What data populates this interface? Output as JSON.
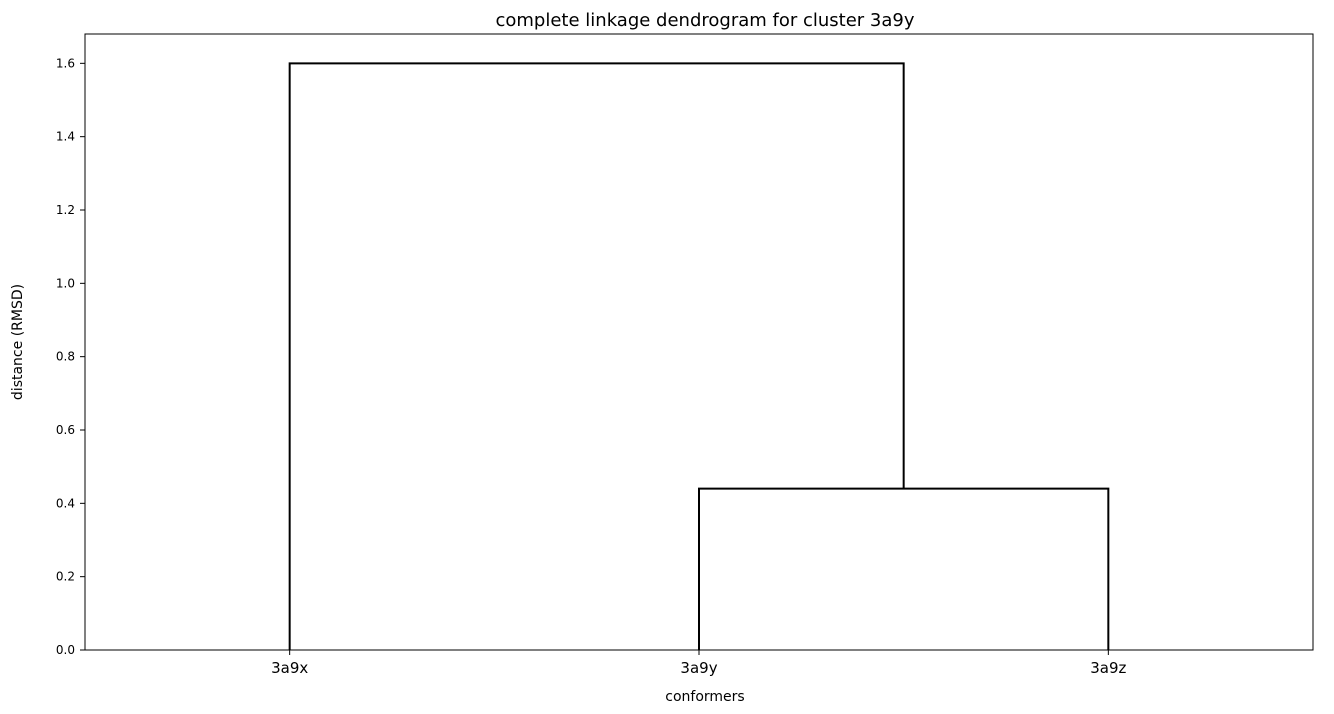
{
  "chart_data": {
    "type": "dendrogram",
    "title": "complete linkage dendrogram for cluster 3a9y",
    "xlabel": "conformers",
    "ylabel": "distance (RMSD)",
    "leaves": [
      "3a9x",
      "3a9y",
      "3a9z"
    ],
    "ylim": [
      0,
      1.68
    ],
    "yticks": [
      "0.0",
      "0.2",
      "0.4",
      "0.6",
      "0.8",
      "1.0",
      "1.2",
      "1.4",
      "1.6"
    ],
    "grid": false,
    "line_color": "#000000",
    "merges": [
      {
        "left": "3a9y",
        "right": "3a9z",
        "distance": 0.44
      },
      {
        "left": "3a9x",
        "right": "3a9y+3a9z",
        "distance": 1.6
      }
    ]
  }
}
